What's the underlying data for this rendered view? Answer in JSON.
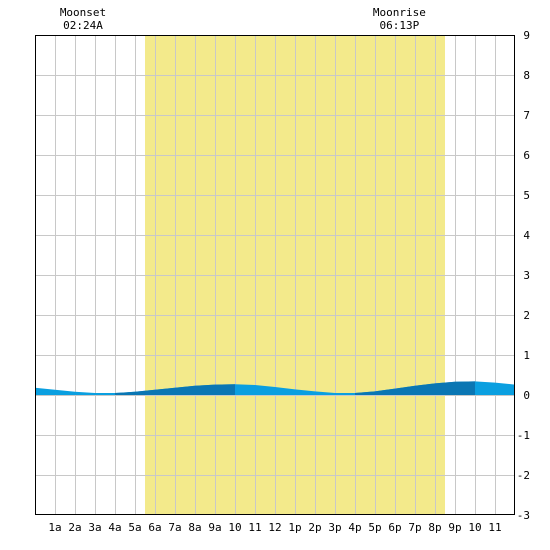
{
  "chart_data": {
    "type": "area",
    "title": "",
    "xlabel": "",
    "ylabel": "",
    "x_ticks": [
      "1a",
      "2a",
      "3a",
      "4a",
      "5a",
      "6a",
      "7a",
      "8a",
      "9a",
      "10",
      "11",
      "12",
      "1p",
      "2p",
      "3p",
      "4p",
      "5p",
      "6p",
      "7p",
      "8p",
      "9p",
      "10",
      "11"
    ],
    "x_range_hours": [
      0,
      24
    ],
    "ylim": [
      -3,
      9
    ],
    "y_ticks": [
      "9",
      "8",
      "7",
      "6",
      "5",
      "4",
      "3",
      "2",
      "1",
      "0",
      "-1",
      "-2",
      "-3"
    ],
    "grid": true,
    "daylight": {
      "start_hour": 5.5,
      "end_hour": 20.5
    },
    "annotations": [
      {
        "id": "moonset",
        "label": "Moonset",
        "time": "02:24A",
        "hour": 2.4
      },
      {
        "id": "moonrise",
        "label": "Moonrise",
        "time": "06:13P",
        "hour": 18.22
      }
    ],
    "series": [
      {
        "x": [
          0,
          1,
          2,
          3,
          4,
          5,
          6,
          7,
          8,
          9,
          10,
          11,
          12,
          13,
          14,
          15,
          16,
          17,
          18,
          19,
          20,
          21,
          22,
          23,
          24
        ],
        "values": [
          0.18,
          0.13,
          0.08,
          0.05,
          0.05,
          0.08,
          0.13,
          0.18,
          0.23,
          0.26,
          0.27,
          0.25,
          0.2,
          0.14,
          0.09,
          0.05,
          0.05,
          0.09,
          0.16,
          0.23,
          0.29,
          0.33,
          0.34,
          0.31,
          0.26
        ]
      }
    ],
    "colors": {
      "daylight": "#f3ea8b",
      "grid": "#c8c8c8",
      "axis": "#000000",
      "area_light": "#0a9fe0",
      "area_dark": "#0a76b3"
    }
  }
}
